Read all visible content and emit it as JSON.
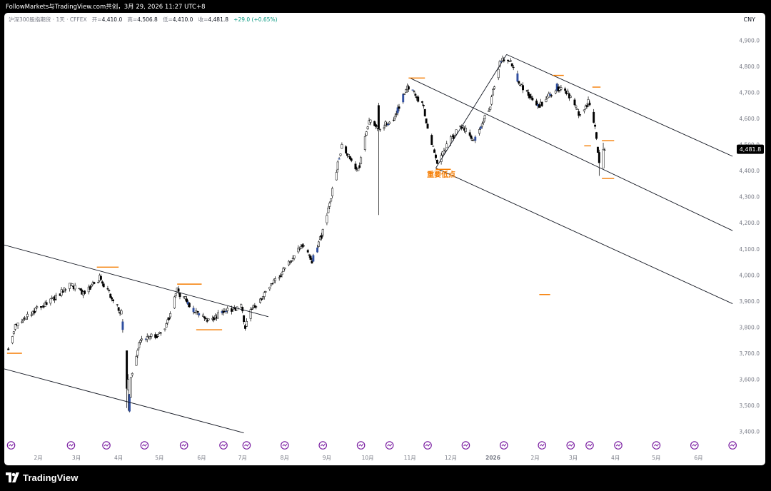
{
  "window": {
    "caption": "FollowMarkets与TradingView.com共创，3月 29, 2026 11:27 UTC+8"
  },
  "legend": {
    "symbol": "沪深300股指期货 · 1天 · CFFEX",
    "open_label": "开=",
    "open_value": "4,410.0",
    "high_label": "高=",
    "high_value": "4,506.8",
    "low_label": "低=",
    "low_value": "4,410.0",
    "close_label": "收=",
    "close_value": "4,481.8",
    "change": "+29.0 (+0.65%)"
  },
  "currency": "CNY",
  "brand": {
    "name": "TradingView",
    "icon": "tradingview-logo-icon"
  },
  "colors": {
    "up_candle": "#ffffff",
    "down_candle": "#000000",
    "highlight_candle": "#2f4ea0",
    "annotation": "#f57c00",
    "event_marker": "#7b1fa2",
    "price_badge": "#000000"
  },
  "chart_data": {
    "type": "candlestick",
    "title": "",
    "y_axis": {
      "ticks": [
        3400,
        3500,
        3600,
        3700,
        3800,
        3900,
        4000,
        4100,
        4200,
        4300,
        4400,
        4500,
        4600,
        4700,
        4800,
        4900
      ],
      "tick_labels": [
        "3,400.0",
        "3,500.0",
        "3,600.0",
        "3,700.0",
        "3,800.0",
        "3,900.0",
        "4,000.0",
        "4,100.0",
        "4,200.0",
        "4,300.0",
        "4,400.0",
        "4,500.0",
        "4,600.0",
        "4,700.0",
        "4,800.0",
        "4,900.0"
      ],
      "range": [
        3380,
        4950
      ],
      "last_price": 4481.8,
      "last_price_label": "4,481.8"
    },
    "x_axis": {
      "labels": [
        "2月",
        "3月",
        "4月",
        "5月",
        "6月",
        "7月",
        "8月",
        "9月",
        "10月",
        "11月",
        "12月",
        "2026",
        "2月",
        "3月",
        "4月",
        "5月",
        "6月"
      ],
      "label_dates": [
        "2025-02-01",
        "2025-03-01",
        "2025-04-01",
        "2025-05-01",
        "2025-06-01",
        "2025-07-01",
        "2025-08-01",
        "2025-09-01",
        "2025-10-01",
        "2025-11-01",
        "2025-12-01",
        "2026-01-01",
        "2026-02-01",
        "2026-03-01",
        "2026-04-01",
        "2026-05-01",
        "2026-06-01"
      ],
      "range": [
        "2025-01-07",
        "2026-06-28"
      ]
    },
    "price_path": [
      [
        "2025-01-10",
        3720
      ],
      [
        "2025-01-15",
        3800
      ],
      [
        "2025-01-28",
        3860
      ],
      [
        "2025-02-10",
        3900
      ],
      [
        "2025-02-25",
        3960
      ],
      [
        "2025-03-06",
        3930
      ],
      [
        "2025-03-18",
        3990
      ],
      [
        "2025-03-28",
        3900
      ],
      [
        "2025-04-03",
        3850
      ],
      [
        "2025-04-07",
        3560
      ],
      [
        "2025-04-09",
        3480
      ],
      [
        "2025-04-10",
        3600
      ],
      [
        "2025-04-17",
        3750
      ],
      [
        "2025-04-30",
        3770
      ],
      [
        "2025-05-07",
        3820
      ],
      [
        "2025-05-14",
        3940
      ],
      [
        "2025-05-26",
        3870
      ],
      [
        "2025-06-05",
        3820
      ],
      [
        "2025-06-19",
        3860
      ],
      [
        "2025-06-30",
        3880
      ],
      [
        "2025-07-03",
        3800
      ],
      [
        "2025-07-08",
        3870
      ],
      [
        "2025-07-22",
        3960
      ],
      [
        "2025-08-01",
        4020
      ],
      [
        "2025-08-14",
        4120
      ],
      [
        "2025-08-21",
        4050
      ],
      [
        "2025-08-30",
        4180
      ],
      [
        "2025-09-05",
        4320
      ],
      [
        "2025-09-12",
        4500
      ],
      [
        "2025-09-24",
        4400
      ],
      [
        "2025-10-02",
        4590
      ],
      [
        "2025-10-10",
        4560
      ],
      [
        "2025-10-20",
        4600
      ],
      [
        "2025-10-30",
        4720
      ],
      [
        "2025-11-10",
        4660
      ],
      [
        "2025-11-21",
        4420
      ],
      [
        "2025-11-28",
        4490
      ],
      [
        "2025-12-08",
        4580
      ],
      [
        "2025-12-18",
        4510
      ],
      [
        "2025-12-30",
        4650
      ],
      [
        "2026-01-06",
        4820
      ],
      [
        "2026-01-13",
        4820
      ],
      [
        "2026-01-22",
        4720
      ],
      [
        "2026-02-04",
        4650
      ],
      [
        "2026-02-17",
        4720
      ],
      [
        "2026-02-26",
        4690
      ],
      [
        "2026-03-05",
        4620
      ],
      [
        "2026-03-12",
        4660
      ],
      [
        "2026-03-17",
        4560
      ],
      [
        "2026-03-19",
        4460
      ],
      [
        "2026-03-20",
        4440
      ],
      [
        "2026-03-24",
        4480
      ]
    ],
    "candles": [
      [
        "2025-04-07",
        3710,
        3565,
        3710,
        3490,
        "down"
      ],
      [
        "2025-04-08",
        3560,
        3600,
        3620,
        3480,
        "up"
      ],
      [
        "2025-10-09",
        4650,
        4560,
        4660,
        4230,
        "down"
      ],
      [
        "2026-03-20",
        4470,
        4430,
        4480,
        4380,
        "down"
      ],
      [
        "2026-03-23",
        4410,
        4481.8,
        4506.8,
        4410,
        "up"
      ]
    ],
    "trendlines": [
      {
        "from": [
          "2025-01-07",
          4115
        ],
        "to": [
          "2025-07-20",
          3840
        ]
      },
      {
        "from": [
          "2025-01-07",
          3640
        ],
        "to": [
          "2025-07-02",
          3395
        ]
      },
      {
        "from": [
          "2025-11-20",
          4410
        ],
        "to": [
          "2026-01-11",
          4845
        ]
      },
      {
        "from": [
          "2026-01-11",
          4845
        ],
        "to": [
          "2026-06-26",
          4455
        ]
      },
      {
        "from": [
          "2025-11-01",
          4755
        ],
        "to": [
          "2026-06-26",
          4170
        ]
      },
      {
        "from": [
          "2025-11-20",
          4410
        ],
        "to": [
          "2026-06-26",
          3890
        ]
      }
    ],
    "level_markers": [
      [
        "2025-01-09",
        "2025-01-20",
        3700
      ],
      [
        "2025-03-16",
        "2025-04-01",
        4030
      ],
      [
        "2025-05-14",
        "2025-06-01",
        3965
      ],
      [
        "2025-05-28",
        "2025-06-16",
        3790
      ],
      [
        "2025-10-31",
        "2025-11-12",
        4755
      ],
      [
        "2025-11-20",
        "2025-12-01",
        4405
      ],
      [
        "2026-02-04",
        "2026-02-12",
        3925
      ],
      [
        "2026-02-14",
        "2026-02-22",
        4765
      ],
      [
        "2026-03-09",
        "2026-03-14",
        4495
      ],
      [
        "2026-03-15",
        "2026-03-21",
        4720
      ],
      [
        "2026-03-22",
        "2026-03-31",
        4515
      ],
      [
        "2026-03-22",
        "2026-03-31",
        4370
      ]
    ],
    "annotations": [
      {
        "text": "重要低点",
        "date": "2025-11-24",
        "price": 4375
      }
    ],
    "event_marker_dates": [
      "2025-01-12",
      "2025-02-25",
      "2025-03-23",
      "2025-04-20",
      "2025-05-19",
      "2025-06-17",
      "2025-07-04",
      "2025-08-01",
      "2025-08-29",
      "2025-09-26",
      "2025-10-17",
      "2025-11-14",
      "2025-12-12",
      "2026-01-09",
      "2026-02-06",
      "2026-02-27",
      "2026-03-13",
      "2026-04-03",
      "2026-05-01",
      "2026-05-29",
      "2026-06-26"
    ]
  }
}
